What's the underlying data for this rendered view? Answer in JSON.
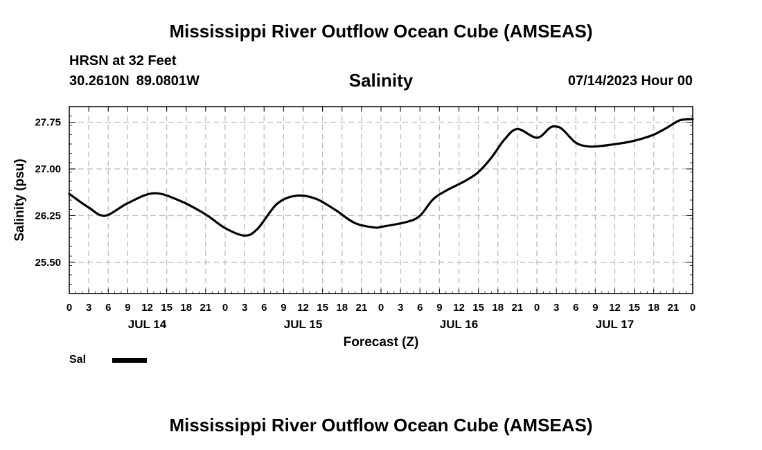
{
  "header": {
    "title": "Mississippi River Outflow Ocean Cube (AMSEAS)",
    "station": "HRSN at 32 Feet",
    "lat": "30.2610N",
    "lon": "89.0801W",
    "chart_title": "Salinity",
    "datetime": "07/14/2023 Hour 00"
  },
  "footer": {
    "title": "Mississippi River Outflow Ocean Cube (AMSEAS)"
  },
  "legend": {
    "label": "Sal",
    "color": "#000000"
  },
  "chart_data": {
    "type": "line",
    "title": "Salinity",
    "xlabel": "Forecast (Z)",
    "ylabel": "Salinity (psu)",
    "xlim": [
      0,
      96
    ],
    "ylim": [
      25.0,
      28.0
    ],
    "x_tick_labels": [
      "0",
      "3",
      "6",
      "9",
      "12",
      "15",
      "18",
      "21",
      "0",
      "3",
      "6",
      "9",
      "12",
      "15",
      "18",
      "21",
      "0",
      "3",
      "6",
      "9",
      "12",
      "15",
      "18",
      "21",
      "0",
      "3",
      "6",
      "9",
      "12",
      "15",
      "18",
      "21",
      "0"
    ],
    "y_ticks": [
      25.5,
      26.25,
      27.0,
      27.75
    ],
    "y_tick_labels": [
      "25.50",
      "26.25",
      "27.00",
      "27.75"
    ],
    "day_labels": [
      {
        "label": "JUL 14",
        "hour": 12
      },
      {
        "label": "JUL 15",
        "hour": 36
      },
      {
        "label": "JUL 16",
        "hour": 60
      },
      {
        "label": "JUL 17",
        "hour": 84
      }
    ],
    "grid": true,
    "series": [
      {
        "name": "Sal",
        "x": [
          0,
          3,
          5.5,
          9,
          13,
          17,
          21,
          24,
          27,
          29,
          32,
          35,
          38,
          41,
          44,
          47,
          48,
          52,
          54,
          56,
          58,
          61,
          63,
          65,
          67,
          69,
          72,
          74,
          75,
          76,
          78,
          80,
          82,
          83.5,
          86,
          88,
          90,
          92,
          94,
          96
        ],
        "values": [
          26.6,
          26.38,
          26.25,
          26.45,
          26.61,
          26.49,
          26.27,
          26.05,
          25.93,
          26.04,
          26.44,
          26.57,
          26.52,
          26.34,
          26.13,
          26.06,
          26.07,
          26.15,
          26.25,
          26.51,
          26.65,
          26.81,
          26.95,
          27.18,
          27.47,
          27.64,
          27.5,
          27.66,
          27.68,
          27.63,
          27.42,
          27.36,
          27.37,
          27.39,
          27.43,
          27.48,
          27.55,
          27.66,
          27.78,
          27.8
        ]
      }
    ]
  }
}
